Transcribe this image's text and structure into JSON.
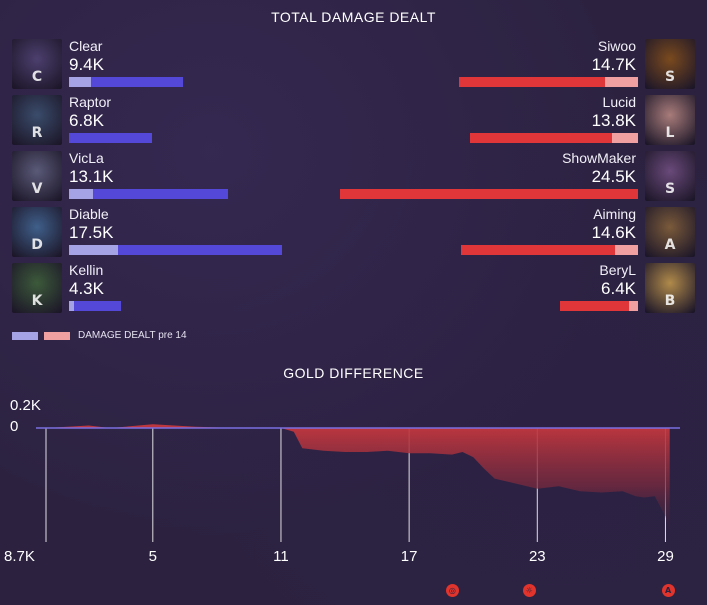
{
  "damage_title": "TOTAL DAMAGE DEALT",
  "gold_title": "GOLD DIFFERENCE",
  "legend_label": "DAMAGE DEALT pre 14",
  "colors": {
    "blue_total": "#5448d8",
    "blue_pre": "#a6a2e6",
    "red_total": "#e0363a",
    "red_pre": "#f1a0a2",
    "gold_fill_top": "#c23a3e",
    "gold_line": "#7a6fe0"
  },
  "blue_team": [
    {
      "name": "Clear",
      "damage_label": "9.4K",
      "damage": 9.4,
      "pre14": 1.8,
      "portrait_color": "#4c3f6e",
      "icon": "champion-portrait"
    },
    {
      "name": "Raptor",
      "damage_label": "6.8K",
      "damage": 6.8,
      "pre14": 0.0,
      "portrait_color": "#3a4c6b",
      "icon": "champion-portrait"
    },
    {
      "name": "VicLa",
      "damage_label": "13.1K",
      "damage": 13.1,
      "pre14": 2.0,
      "portrait_color": "#5a5a78",
      "icon": "champion-portrait"
    },
    {
      "name": "Diable",
      "damage_label": "17.5K",
      "damage": 17.5,
      "pre14": 4.0,
      "portrait_color": "#3f5f8a",
      "icon": "champion-portrait"
    },
    {
      "name": "Kellin",
      "damage_label": "4.3K",
      "damage": 4.3,
      "pre14": 0.4,
      "portrait_color": "#3c5a3a",
      "icon": "champion-portrait"
    }
  ],
  "red_team": [
    {
      "name": "Siwoo",
      "damage_label": "14.7K",
      "damage": 14.7,
      "pre14": 2.7,
      "portrait_color": "#7a4a1e",
      "icon": "champion-portrait"
    },
    {
      "name": "Lucid",
      "damage_label": "13.8K",
      "damage": 13.8,
      "pre14": 2.1,
      "portrait_color": "#a87c7a",
      "icon": "champion-portrait"
    },
    {
      "name": "ShowMaker",
      "damage_label": "24.5K",
      "damage": 24.5,
      "pre14": 0.0,
      "portrait_color": "#6a4a7a",
      "icon": "champion-portrait"
    },
    {
      "name": "Aiming",
      "damage_label": "14.6K",
      "damage": 14.6,
      "pre14": 1.9,
      "portrait_color": "#7a5a3a",
      "icon": "champion-portrait"
    },
    {
      "name": "BeryL",
      "damage_label": "6.4K",
      "damage": 6.4,
      "pre14": 0.7,
      "portrait_color": "#b08a4a",
      "icon": "champion-portrait"
    }
  ],
  "chart_data": {
    "type": "area",
    "title": "GOLD DIFFERENCE",
    "y_top_label": "0.2K",
    "y_zero_label": "0",
    "y_bottom_label": "8.7K",
    "ylim": [
      -8.7,
      0.2
    ],
    "xlim": [
      0,
      29.4
    ],
    "x_ticks": [
      5,
      11,
      17,
      23,
      29
    ],
    "grid": true,
    "series": [
      {
        "x": [
          0,
          2,
          3,
          5,
          7,
          9,
          11,
          11.6,
          12,
          13,
          14,
          15,
          16,
          17,
          18,
          19,
          19.5,
          20,
          20.5,
          21,
          22,
          23,
          24,
          25,
          26,
          27,
          27.6,
          28,
          28.5,
          29,
          29.2
        ],
        "y": [
          0,
          0.02,
          0,
          0.03,
          0.01,
          0,
          0,
          -0.3,
          -1.6,
          -1.8,
          -1.9,
          -1.9,
          -1.8,
          -2.0,
          -2.0,
          -2.1,
          -1.9,
          -2.3,
          -3.2,
          -4.0,
          -4.4,
          -4.8,
          -4.6,
          -5.0,
          -5.1,
          -5.0,
          -5.4,
          -5.5,
          -5.4,
          -7.0,
          -8.5
        ]
      }
    ],
    "objective_markers": [
      {
        "icon": "dragon-objective-icon",
        "glyph": "◎",
        "minute": 19.0
      },
      {
        "icon": "baron-objective-icon",
        "glyph": "☼",
        "minute": 22.6
      },
      {
        "icon": "ancient-objective-icon",
        "glyph": "A",
        "minute": 29.1
      }
    ]
  }
}
